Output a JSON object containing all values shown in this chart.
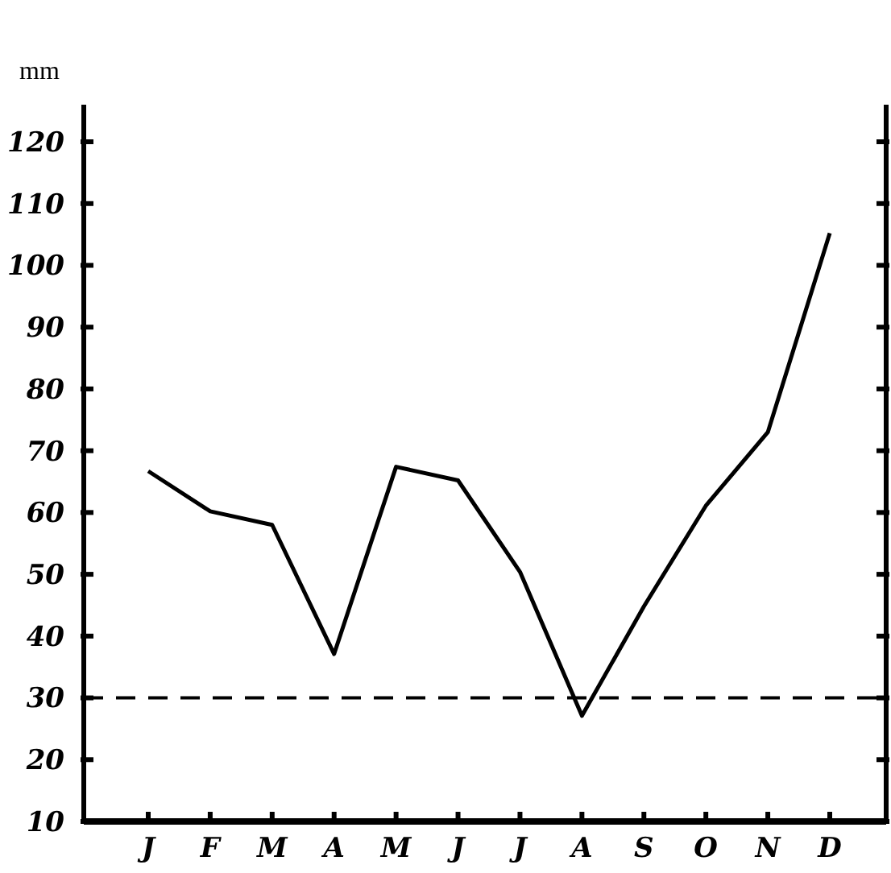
{
  "chart_data": {
    "type": "line",
    "ylabel": "mm",
    "categories": [
      "J",
      "F",
      "M",
      "A",
      "M",
      "J",
      "J",
      "A",
      "S",
      "O",
      "N",
      "D"
    ],
    "series": [
      {
        "color": "#000000",
        "values": [
          66.7,
          60.2,
          58,
          37.1,
          67.4,
          65.2,
          50.4,
          27.1,
          44.8,
          61.1,
          73,
          105.2
        ]
      }
    ],
    "ylim": [
      10,
      126
    ],
    "yticks": [
      10,
      20,
      30,
      40,
      50,
      60,
      70,
      80,
      90,
      100,
      110,
      120
    ],
    "ref_lines": [
      {
        "axis": "y",
        "value": 30,
        "color": "#000000",
        "line_style": "dashed"
      }
    ],
    "grid": false,
    "legend": false,
    "marker": "none",
    "line_style": "solid"
  }
}
